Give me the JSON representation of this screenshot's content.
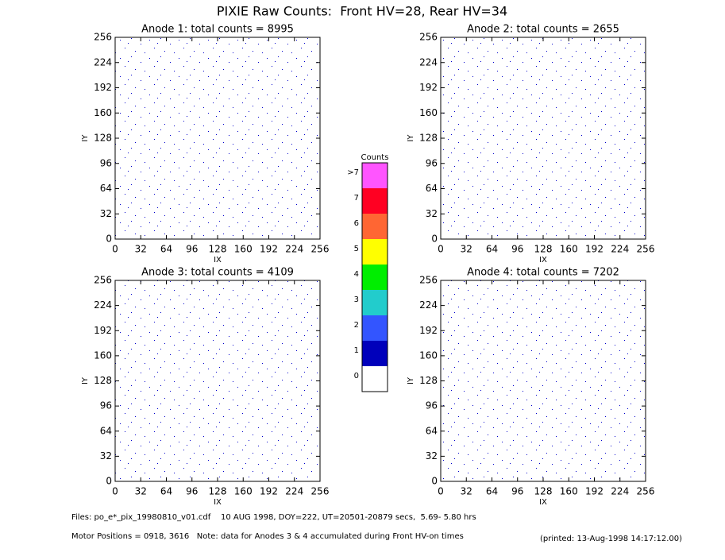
{
  "title": "PIXIE Raw Counts:  Front HV=28, Rear HV=34",
  "chart_data": [
    {
      "type": "heatmap",
      "title": "Anode 1: total counts = 8995",
      "x_label": "IX",
      "y_label": "IY",
      "xlim": [
        0,
        256
      ],
      "ylim": [
        0,
        256
      ],
      "xticks": [
        0,
        32,
        64,
        96,
        128,
        160,
        192,
        224,
        256
      ],
      "yticks": [
        0,
        32,
        64,
        96,
        128,
        160,
        192,
        224,
        256
      ]
    },
    {
      "type": "heatmap",
      "title": "Anode 2: total counts = 2655",
      "x_label": "IX",
      "y_label": "IY",
      "xlim": [
        0,
        256
      ],
      "ylim": [
        0,
        256
      ],
      "xticks": [
        0,
        32,
        64,
        96,
        128,
        160,
        192,
        224,
        256
      ],
      "yticks": [
        0,
        32,
        64,
        96,
        128,
        160,
        192,
        224,
        256
      ]
    },
    {
      "type": "heatmap",
      "title": "Anode 3: total counts = 4109",
      "x_label": "IX",
      "y_label": "IY",
      "xlim": [
        0,
        256
      ],
      "ylim": [
        0,
        256
      ],
      "xticks": [
        0,
        32,
        64,
        96,
        128,
        160,
        192,
        224,
        256
      ],
      "yticks": [
        0,
        32,
        64,
        96,
        128,
        160,
        192,
        224,
        256
      ]
    },
    {
      "type": "heatmap",
      "title": "Anode 4: total counts = 7202",
      "x_label": "IX",
      "y_label": "IY",
      "xlim": [
        0,
        256
      ],
      "ylim": [
        0,
        256
      ],
      "xticks": [
        0,
        32,
        64,
        96,
        128,
        160,
        192,
        224,
        256
      ],
      "yticks": [
        0,
        32,
        64,
        96,
        128,
        160,
        192,
        224,
        256
      ]
    }
  ],
  "colorbar": {
    "title": "Counts",
    "labels": [
      "0",
      "1",
      "2",
      "3",
      "4",
      "5",
      "6",
      "7",
      ">7"
    ],
    "colors": [
      "#ffffff",
      "#0000bb",
      "#3355ff",
      "#22cccc",
      "#00ee00",
      "#ffff00",
      "#ff6633",
      "#ff0022",
      "#ff55ff"
    ]
  },
  "footer": {
    "files": "Files: po_e*_pix_19980810_v01.cdf    10 AUG 1998, DOY=222, UT=20501-20879 secs,  5.69- 5.80 hrs",
    "motor": "Motor Positions = 0918, 3616   Note: data for Anodes 3 & 4 accumulated during Front HV-on times",
    "printed": "(printed: 13-Aug-1998 14:17:12.00)"
  }
}
